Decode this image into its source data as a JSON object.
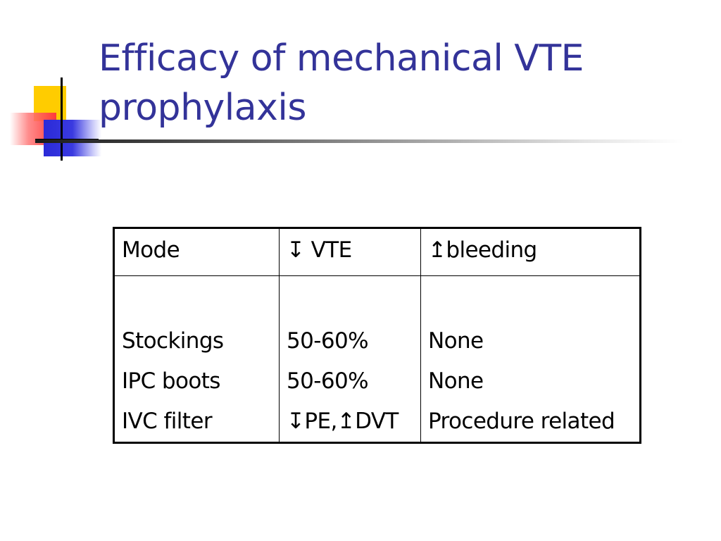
{
  "slide": {
    "title_line1": "Efficacy of mechanical VTE",
    "title_line2": "prophylaxis"
  },
  "colors": {
    "title": "#333399",
    "logo_yellow": "#ffcc00",
    "logo_red": "#ff3b3b",
    "logo_blue": "#2a2ad8"
  },
  "table": {
    "headers": [
      "Mode",
      "↧ VTE",
      "↥bleeding"
    ],
    "columns": [
      [
        "Stockings",
        "IPC boots",
        "IVC filter"
      ],
      [
        "50-60%",
        "50-60%",
        "↧PE,↥DVT"
      ],
      [
        "None",
        "None",
        "Procedure related"
      ]
    ]
  }
}
